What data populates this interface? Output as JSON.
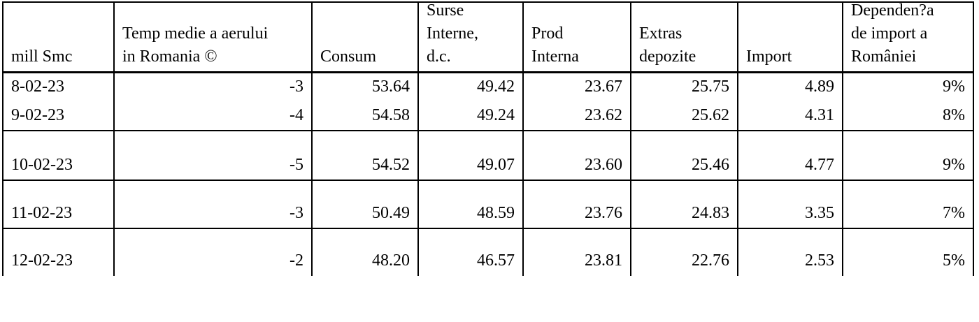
{
  "table": {
    "header": [
      [
        "mill Smc"
      ],
      [
        "Temp medie a aerului",
        "in Romania ©"
      ],
      [
        "Consum"
      ],
      [
        "Surse",
        "Interne,",
        "d.c."
      ],
      [
        "Prod",
        "Interna"
      ],
      [
        "Extras",
        "depozite"
      ],
      [
        "Import"
      ],
      [
        "Dependen?a",
        "de import a",
        "României"
      ]
    ],
    "rows": [
      [
        "8-02-23",
        "-3",
        "53.64",
        "49.42",
        "23.67",
        "25.75",
        "4.89",
        "9%"
      ],
      [
        "9-02-23",
        "-4",
        "54.58",
        "49.24",
        "23.62",
        "25.62",
        "4.31",
        "8%"
      ],
      [
        "10-02-23",
        "-5",
        "54.52",
        "49.07",
        "23.60",
        "25.46",
        "4.77",
        "9%"
      ],
      [
        "11-02-23",
        "-3",
        "50.49",
        "48.59",
        "23.76",
        "24.83",
        "3.35",
        "7%"
      ],
      [
        "12-02-23",
        "-2",
        "48.20",
        "46.57",
        "23.81",
        "22.76",
        "2.53",
        "5%"
      ]
    ]
  }
}
